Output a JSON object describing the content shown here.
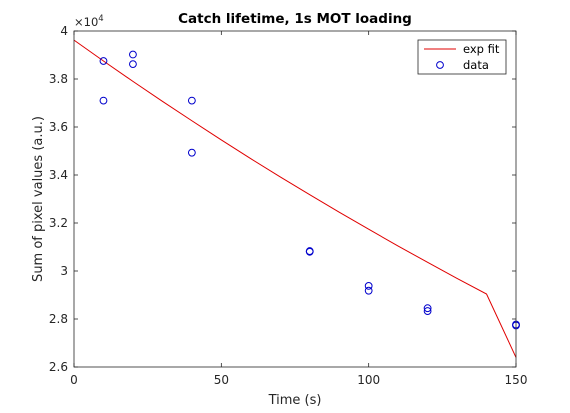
{
  "chart_data": {
    "type": "scatter",
    "title": "Catch lifetime, 1s MOT loading",
    "xlabel": "Time (s)",
    "ylabel": "Sum of pixel values (a.u.)",
    "y_exponent_label": "×10",
    "y_exponent_power": "4",
    "xlim": [
      0,
      150
    ],
    "ylim": [
      2.6,
      4.0
    ],
    "x_ticks": [
      0,
      50,
      100,
      150
    ],
    "x_tick_labels": [
      "0",
      "50",
      "100",
      "150"
    ],
    "y_ticks": [
      2.6,
      2.8,
      3.0,
      3.2,
      3.4,
      3.6,
      3.8,
      4.0
    ],
    "y_tick_labels": [
      "2.6",
      "2.8",
      "3",
      "3.2",
      "3.4",
      "3.6",
      "3.8",
      "4"
    ],
    "grid": false,
    "legend_position": "top-right",
    "series": [
      {
        "name": "exp fit",
        "kind": "line",
        "color": "#e00000",
        "x": [
          0,
          10,
          20,
          30,
          40,
          50,
          60,
          70,
          80,
          90,
          100,
          110,
          120,
          130,
          140,
          150
        ],
        "y": [
          3.962,
          3.875,
          3.79,
          3.707,
          3.626,
          3.546,
          3.468,
          3.392,
          3.318,
          3.245,
          3.174,
          3.104,
          3.036,
          2.969,
          2.904,
          2.64
        ]
      },
      {
        "name": "data",
        "kind": "scatter",
        "color": "#0000cc",
        "x": [
          10,
          10,
          20,
          20,
          40,
          40,
          80,
          80,
          100,
          100,
          120,
          120,
          150,
          150
        ],
        "y": [
          3.875,
          3.71,
          3.902,
          3.862,
          3.71,
          3.493,
          3.083,
          3.08,
          2.938,
          2.918,
          2.845,
          2.833,
          2.777,
          2.773
        ]
      }
    ]
  }
}
